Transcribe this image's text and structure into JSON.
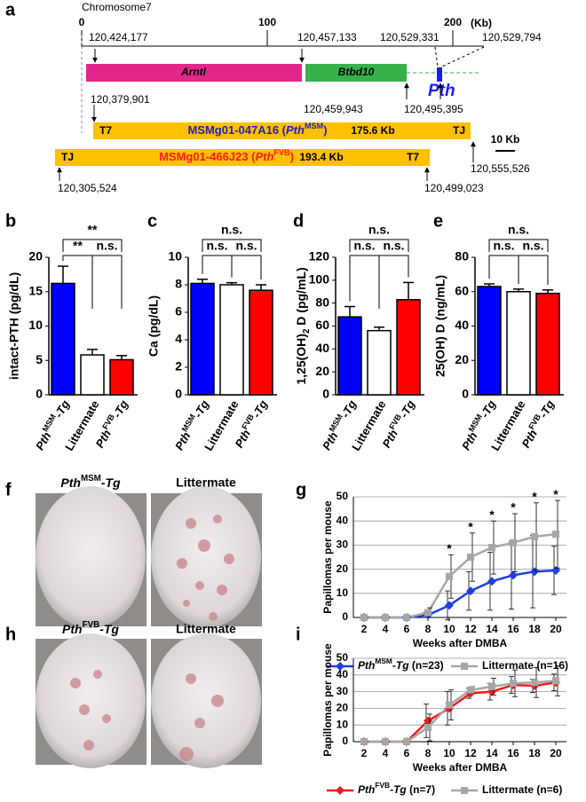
{
  "panel_labels": [
    "a",
    "b",
    "c",
    "d",
    "e",
    "f",
    "g",
    "h",
    "i"
  ],
  "map": {
    "chromosome": "Chromosome7",
    "scale_ticks": [
      0,
      100,
      200
    ],
    "scale_unit": "(Kb)",
    "coordinates": [
      "120,424,177",
      "120,457,133",
      "120,529,331",
      "120,529,794",
      "120,379,901",
      "120,459,943",
      "120,495,395",
      "120,555,526",
      "120,305,524",
      "120,499,023"
    ],
    "genes": [
      {
        "name": "Arntl",
        "color": "#e2268c"
      },
      {
        "name": "Btbd10",
        "color": "#35b24a"
      },
      {
        "name": "Pth",
        "color": "#1a1aff"
      }
    ],
    "clones": [
      {
        "left_end": "T7",
        "name": "MSMg01-047A16 (PthMSM)",
        "size": "175.6 Kb",
        "right_end": "TJ",
        "color": "#2020c0"
      },
      {
        "left_end": "TJ",
        "name": "MSMg01-466J23 (PthFVB)",
        "size": "193.4 Kb",
        "right_end": "T7",
        "color": "#ff1a1a"
      }
    ],
    "scale_bar": "10 Kb"
  },
  "photos": [
    {
      "title": "PthMSM-Tg"
    },
    {
      "title": "Littermate"
    },
    {
      "title": "PthFVB-Tg"
    },
    {
      "title": "Littermate"
    }
  ],
  "chart_data": [
    {
      "type": "bar",
      "ylabel": "intact-PTH (pg/dL)",
      "categories": [
        "PthMSM-Tg",
        "Littermate",
        "PthFVB-Tg"
      ],
      "values": [
        16.2,
        5.8,
        5.1
      ],
      "errors": [
        2.5,
        0.8,
        0.6
      ],
      "colors": [
        "#0000ff",
        "#ffffff",
        "#ff0000"
      ],
      "ylim": [
        0,
        20
      ],
      "yticks": [
        0,
        5,
        10,
        15,
        20
      ],
      "brackets": [
        {
          "text": "**",
          "between": [
            "PthMSM-Tg",
            "PthFVB-Tg"
          ]
        },
        {
          "text": "**",
          "between": [
            "PthMSM-Tg",
            "Littermate"
          ]
        },
        {
          "text": "n.s.",
          "between": [
            "Littermate",
            "PthFVB-Tg"
          ]
        }
      ]
    },
    {
      "type": "bar",
      "ylabel": "Ca (pg/dL)",
      "categories": [
        "PthMSM-Tg",
        "Littermate",
        "PthFVB-Tg"
      ],
      "values": [
        8.1,
        8.0,
        7.6
      ],
      "errors": [
        0.3,
        0.15,
        0.4
      ],
      "colors": [
        "#0000ff",
        "#ffffff",
        "#ff0000"
      ],
      "ylim": [
        0,
        10
      ],
      "yticks": [
        0,
        2,
        4,
        6,
        8,
        10
      ],
      "brackets": [
        {
          "text": "n.s.",
          "between": [
            "PthMSM-Tg",
            "PthFVB-Tg"
          ]
        },
        {
          "text": "n.s.",
          "between": [
            "PthMSM-Tg",
            "Littermate"
          ]
        },
        {
          "text": "n.s.",
          "between": [
            "Littermate",
            "PthFVB-Tg"
          ]
        }
      ]
    },
    {
      "type": "bar",
      "ylabel": "1,25(OH)2 D (pg/mL)",
      "categories": [
        "PthMSM-Tg",
        "Littermate",
        "PthFVB-Tg"
      ],
      "values": [
        68,
        56,
        83
      ],
      "errors": [
        9,
        3,
        15
      ],
      "colors": [
        "#0000ff",
        "#ffffff",
        "#ff0000"
      ],
      "ylim": [
        0,
        120
      ],
      "yticks": [
        0,
        20,
        40,
        60,
        80,
        100,
        120
      ],
      "brackets": [
        {
          "text": "n.s.",
          "between": [
            "PthMSM-Tg",
            "PthFVB-Tg"
          ]
        },
        {
          "text": "n.s.",
          "between": [
            "PthMSM-Tg",
            "Littermate"
          ]
        },
        {
          "text": "n.s.",
          "between": [
            "Littermate",
            "PthFVB-Tg"
          ]
        }
      ]
    },
    {
      "type": "bar",
      "ylabel": "25(OH) D (ng/mL)",
      "categories": [
        "PthMSM-Tg",
        "Littermate",
        "PthFVB-Tg"
      ],
      "values": [
        63,
        60,
        59
      ],
      "errors": [
        1.5,
        1.5,
        2
      ],
      "colors": [
        "#0000ff",
        "#ffffff",
        "#ff0000"
      ],
      "ylim": [
        0,
        80
      ],
      "yticks": [
        0,
        20,
        40,
        60,
        80
      ],
      "brackets": [
        {
          "text": "n.s.",
          "between": [
            "PthMSM-Tg",
            "PthFVB-Tg"
          ]
        },
        {
          "text": "n.s.",
          "between": [
            "PthMSM-Tg",
            "Littermate"
          ]
        },
        {
          "text": "n.s.",
          "between": [
            "Littermate",
            "PthFVB-Tg"
          ]
        }
      ]
    },
    {
      "type": "line",
      "xlabel": "Weeks after DMBA",
      "ylabel": "Papillomas per mouse",
      "x": [
        2,
        4,
        6,
        8,
        10,
        12,
        14,
        16,
        18,
        20
      ],
      "xlim": [
        1,
        21
      ],
      "xticks": [
        2,
        4,
        6,
        8,
        10,
        12,
        14,
        16,
        18,
        20
      ],
      "ylim": [
        0,
        50
      ],
      "yticks": [
        0,
        10,
        20,
        30,
        40,
        50
      ],
      "grid": true,
      "series": [
        {
          "name": "PthMSM-Tg (n=23)",
          "color": "#1f3fe0",
          "marker": "diamond",
          "values": [
            0,
            0,
            0,
            1,
            5,
            11,
            15,
            17.5,
            19,
            19.5
          ],
          "errors": [
            0,
            0,
            0,
            1,
            6,
            8,
            12,
            14,
            15,
            10
          ]
        },
        {
          "name": "Littermate (n=16)",
          "color": "#a6a6a6",
          "marker": "square",
          "values": [
            0,
            0,
            0,
            2,
            17,
            25,
            29,
            31,
            33.5,
            34.5
          ],
          "errors": [
            0,
            0,
            0,
            2,
            9,
            10,
            11,
            12,
            14,
            14
          ]
        }
      ],
      "significance": [
        null,
        null,
        null,
        null,
        "*",
        "*",
        "*",
        "*",
        "*",
        "*"
      ]
    },
    {
      "type": "line",
      "xlabel": "Weeks after DMBA",
      "ylabel": "Papillomas per mouse",
      "x": [
        2,
        4,
        6,
        8,
        10,
        12,
        14,
        16,
        18,
        20
      ],
      "xlim": [
        1,
        21
      ],
      "xticks": [
        2,
        4,
        6,
        8,
        10,
        12,
        14,
        16,
        18,
        20
      ],
      "ylim": [
        0,
        50
      ],
      "yticks": [
        0,
        10,
        20,
        30,
        40,
        50
      ],
      "grid": true,
      "series": [
        {
          "name": "PthFVB-Tg (n=7)",
          "color": "#ee1c1c",
          "marker": "diamond",
          "values": [
            0,
            0,
            0,
            12.5,
            20,
            29,
            30,
            34,
            33.5,
            35.5
          ],
          "errors": [
            0,
            0,
            0,
            10,
            10,
            3,
            5,
            5,
            4,
            5
          ]
        },
        {
          "name": "Littermate (n=6)",
          "color": "#a6a6a6",
          "marker": "square",
          "values": [
            0,
            0,
            0,
            8.5,
            22,
            31,
            33,
            35,
            35.5,
            36.5
          ],
          "errors": [
            0,
            0,
            0,
            8,
            9,
            2,
            5,
            8,
            9,
            9
          ]
        }
      ]
    }
  ]
}
